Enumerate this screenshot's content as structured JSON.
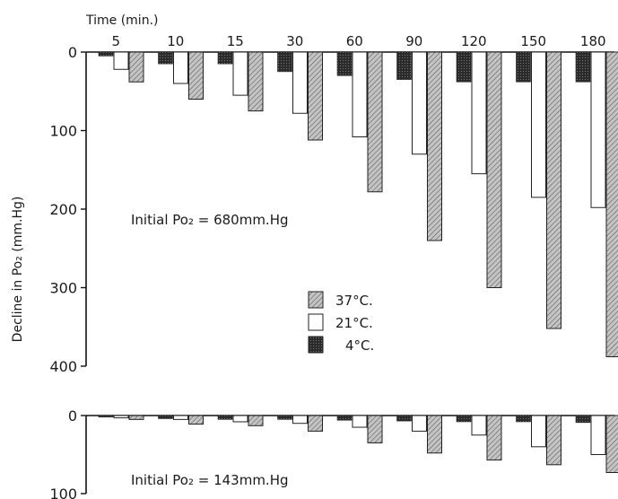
{
  "chart_data": {
    "type": "bar",
    "x_title": "Time (min.)",
    "ylabel": "Decline in Po₂ (mm.Hg)",
    "categories": [
      "5",
      "10",
      "15",
      "30",
      "60",
      "90",
      "120",
      "150",
      "180"
    ],
    "legend": [
      "37°C.",
      "21°C.",
      "4°C."
    ],
    "colors": {
      "c37": "#b4b4b4",
      "c21": "#ffffff",
      "c4": "#2b2b2b"
    },
    "panels": [
      {
        "annotation": "Initial Po₂ = 680mm.Hg",
        "ylim": [
          0,
          400
        ],
        "yticks": [
          "0",
          "100",
          "200",
          "300",
          "400"
        ],
        "series": [
          {
            "name": "4°C.",
            "values": [
              5,
              15,
              15,
              25,
              30,
              35,
              38,
              38,
              38
            ]
          },
          {
            "name": "21°C.",
            "values": [
              22,
              40,
              55,
              78,
              108,
              130,
              155,
              185,
              198
            ]
          },
          {
            "name": "37°C.",
            "values": [
              38,
              60,
              75,
              112,
              178,
              240,
              300,
              352,
              388
            ]
          }
        ]
      },
      {
        "annotation": "Initial Po₂ = 143mm.Hg",
        "ylim": [
          0,
          100
        ],
        "yticks": [
          "0",
          "100"
        ],
        "series": [
          {
            "name": "4°C.",
            "values": [
              2,
              4,
              5,
              5,
              6,
              7,
              8,
              8,
              9
            ]
          },
          {
            "name": "21°C.",
            "values": [
              3,
              5,
              8,
              10,
              15,
              20,
              25,
              40,
              50
            ]
          },
          {
            "name": "37°C.",
            "values": [
              5,
              11,
              13,
              20,
              35,
              48,
              57,
              63,
              73
            ]
          }
        ]
      }
    ]
  }
}
